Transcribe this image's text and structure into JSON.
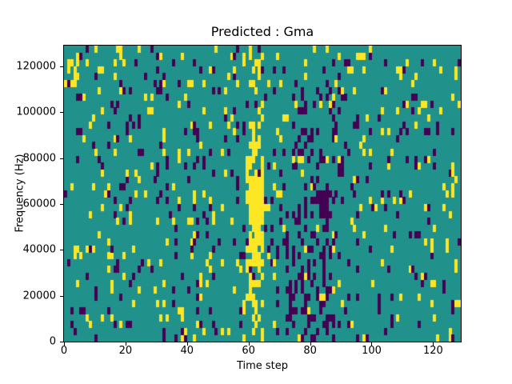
{
  "chart_data": {
    "type": "heatmap",
    "title": "Predicted : Gma",
    "xlabel": "Time step",
    "ylabel": "Frequency (Hz)",
    "x_range": [
      0,
      129
    ],
    "y_range": [
      0,
      129000
    ],
    "x_ticks": [
      0,
      20,
      40,
      60,
      80,
      100,
      120
    ],
    "y_ticks": [
      0,
      20000,
      40000,
      60000,
      80000,
      100000,
      120000
    ],
    "grid": {
      "cols": 129,
      "rows": 43,
      "cell_hz": 3000,
      "cell_step": 1
    },
    "colormap": {
      "name": "viridis-3-level",
      "low": "#440154",
      "mid": "#21918c",
      "high": "#fde725"
    },
    "legend": "none",
    "background_value": 1,
    "noise": {
      "seed": 1337,
      "purple_density": 0.06,
      "yellow_density": 0.055
    },
    "features": [
      {
        "name": "yellow-column-low",
        "x": [
          58,
          64
        ],
        "y_hz": [
          0,
          20000
        ],
        "value": 2,
        "density": 0.4
      },
      {
        "name": "yellow-column-dense",
        "x": [
          59,
          64
        ],
        "y_hz": [
          20000,
          95000
        ],
        "value": 2,
        "density": 0.5
      },
      {
        "name": "yellow-column-core",
        "x": [
          60,
          64
        ],
        "y_hz": [
          48000,
          72000
        ],
        "value": 2,
        "density": 0.95
      },
      {
        "name": "yellow-column-top",
        "x": [
          60,
          64
        ],
        "y_hz": [
          95000,
          128000
        ],
        "value": 2,
        "density": 0.18
      },
      {
        "name": "purple-band-low",
        "x": [
          72,
          87
        ],
        "y_hz": [
          0,
          57000
        ],
        "value": 0,
        "density": 0.35
      },
      {
        "name": "purple-band-mid",
        "x": [
          74,
          90
        ],
        "y_hz": [
          57000,
          112000
        ],
        "value": 0,
        "density": 0.18
      },
      {
        "name": "purple-streak",
        "x": [
          83,
          86
        ],
        "y_hz": [
          50000,
          66000
        ],
        "value": 0,
        "density": 0.6
      },
      {
        "name": "top-left-yellow",
        "x": [
          0,
          4
        ],
        "y_hz": [
          112000,
          127000
        ],
        "value": 2,
        "density": 0.3
      }
    ]
  }
}
